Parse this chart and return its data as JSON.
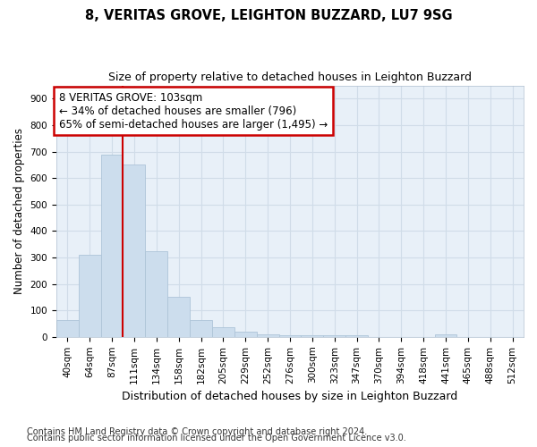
{
  "title1": "8, VERITAS GROVE, LEIGHTON BUZZARD, LU7 9SG",
  "title2": "Size of property relative to detached houses in Leighton Buzzard",
  "xlabel": "Distribution of detached houses by size in Leighton Buzzard",
  "ylabel": "Number of detached properties",
  "footer1": "Contains HM Land Registry data © Crown copyright and database right 2024.",
  "footer2": "Contains public sector information licensed under the Open Government Licence v3.0.",
  "bin_labels": [
    "40sqm",
    "64sqm",
    "87sqm",
    "111sqm",
    "134sqm",
    "158sqm",
    "182sqm",
    "205sqm",
    "229sqm",
    "252sqm",
    "276sqm",
    "300sqm",
    "323sqm",
    "347sqm",
    "370sqm",
    "394sqm",
    "418sqm",
    "441sqm",
    "465sqm",
    "488sqm",
    "512sqm"
  ],
  "bar_values": [
    65,
    310,
    690,
    650,
    325,
    150,
    65,
    35,
    20,
    10,
    5,
    5,
    5,
    5,
    0,
    0,
    0,
    10,
    0,
    0,
    0
  ],
  "bar_color": "#ccdded",
  "bar_edge_color": "#adc4d8",
  "grid_color": "#d0dce8",
  "bg_color": "#e8f0f8",
  "annotation_line1": "8 VERITAS GROVE: 103sqm",
  "annotation_line2": "← 34% of detached houses are smaller (796)",
  "annotation_line3": "65% of semi-detached houses are larger (1,495) →",
  "annotation_box_color": "#cc0000",
  "property_line_bar_idx": 3,
  "ylim": [
    0,
    950
  ],
  "yticks": [
    0,
    100,
    200,
    300,
    400,
    500,
    600,
    700,
    800,
    900
  ],
  "title1_fontsize": 10.5,
  "title2_fontsize": 9.0,
  "ylabel_fontsize": 8.5,
  "xlabel_fontsize": 9.0,
  "tick_fontsize": 7.5,
  "footer_fontsize": 7.0,
  "ann_fontsize": 8.5
}
